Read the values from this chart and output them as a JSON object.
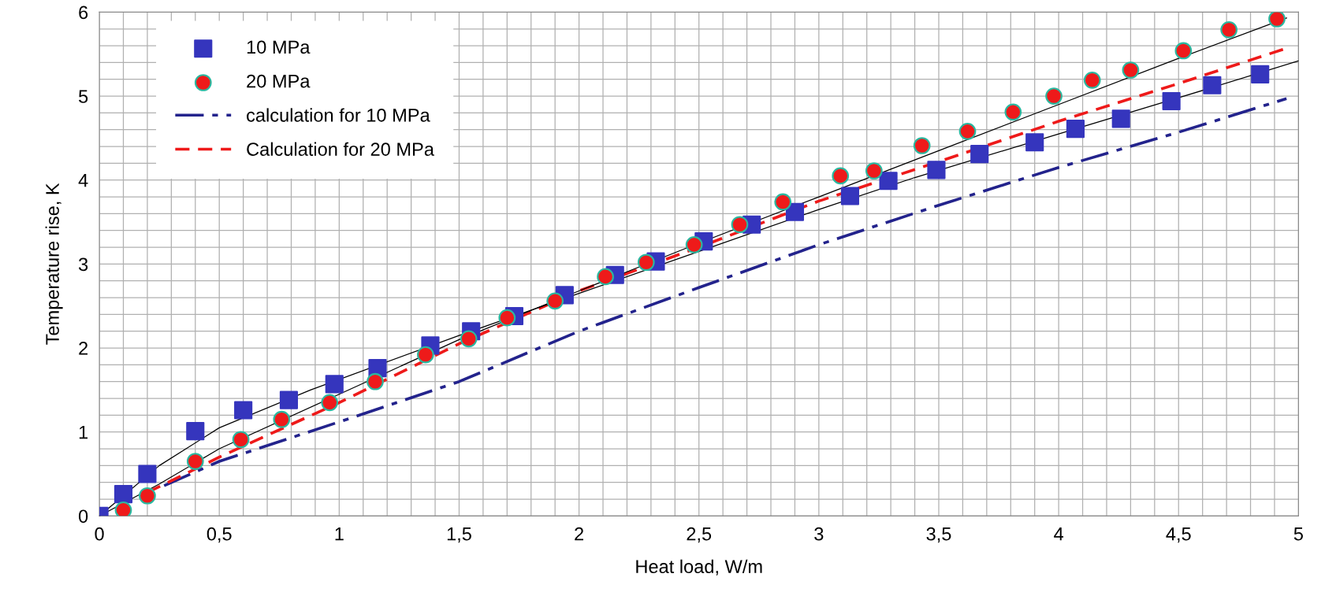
{
  "chart_data": {
    "type": "scatter",
    "xlabel": "Heat load, W/m",
    "ylabel": "Temperature rise, K",
    "xlim": [
      0,
      5
    ],
    "ylim": [
      0,
      6
    ],
    "xticks": [
      0,
      {
        "value": 0.1,
        "label": null
      },
      {
        "value": 0.2,
        "label": null
      },
      {
        "value": 0.3,
        "label": null
      },
      {
        "value": 0.4,
        "label": null
      },
      {
        "value": 0.5,
        "label": "0,5"
      },
      {
        "value": 0.6,
        "label": null
      },
      {
        "value": 0.7,
        "label": null
      },
      {
        "value": 0.8,
        "label": null
      },
      {
        "value": 0.9,
        "label": null
      },
      1,
      {
        "value": 1.1,
        "label": null
      },
      {
        "value": 1.2,
        "label": null
      },
      {
        "value": 1.3,
        "label": null
      },
      {
        "value": 1.4,
        "label": null
      },
      {
        "value": 1.5,
        "label": "1,5"
      },
      {
        "value": 1.6,
        "label": null
      },
      {
        "value": 1.7,
        "label": null
      },
      {
        "value": 1.8,
        "label": null
      },
      {
        "value": 1.9,
        "label": null
      },
      2,
      {
        "value": 2.1,
        "label": null
      },
      {
        "value": 2.2,
        "label": null
      },
      {
        "value": 2.3,
        "label": null
      },
      {
        "value": 2.4,
        "label": null
      },
      {
        "value": 2.5,
        "label": "2,5"
      },
      {
        "value": 2.6,
        "label": null
      },
      {
        "value": 2.7,
        "label": null
      },
      {
        "value": 2.8,
        "label": null
      },
      {
        "value": 2.9,
        "label": null
      },
      3,
      {
        "value": 3.1,
        "label": null
      },
      {
        "value": 3.2,
        "label": null
      },
      {
        "value": 3.3,
        "label": null
      },
      {
        "value": 3.4,
        "label": null
      },
      {
        "value": 3.5,
        "label": "3,5"
      },
      {
        "value": 3.6,
        "label": null
      },
      {
        "value": 3.7,
        "label": null
      },
      {
        "value": 3.8,
        "label": null
      },
      {
        "value": 3.9,
        "label": null
      },
      4,
      {
        "value": 4.1,
        "label": null
      },
      {
        "value": 4.2,
        "label": null
      },
      {
        "value": 4.3,
        "label": null
      },
      {
        "value": 4.4,
        "label": null
      },
      {
        "value": 4.5,
        "label": "4,5"
      },
      {
        "value": 4.6,
        "label": null
      },
      {
        "value": 4.7,
        "label": null
      },
      {
        "value": 4.8,
        "label": null
      },
      {
        "value": 4.9,
        "label": null
      },
      5
    ],
    "yticks": [
      0,
      {
        "value": 0.2,
        "label": null
      },
      {
        "value": 0.4,
        "label": null
      },
      {
        "value": 0.6,
        "label": null
      },
      {
        "value": 0.8,
        "label": null
      },
      1,
      {
        "value": 1.2,
        "label": null
      },
      {
        "value": 1.4,
        "label": null
      },
      {
        "value": 1.6,
        "label": null
      },
      {
        "value": 1.8,
        "label": null
      },
      2,
      {
        "value": 2.2,
        "label": null
      },
      {
        "value": 2.4,
        "label": null
      },
      {
        "value": 2.6,
        "label": null
      },
      {
        "value": 2.8,
        "label": null
      },
      3,
      {
        "value": 3.2,
        "label": null
      },
      {
        "value": 3.4,
        "label": null
      },
      {
        "value": 3.6,
        "label": null
      },
      {
        "value": 3.8,
        "label": null
      },
      4,
      {
        "value": 4.2,
        "label": null
      },
      {
        "value": 4.4,
        "label": null
      },
      {
        "value": 4.6,
        "label": null
      },
      {
        "value": 4.8,
        "label": null
      },
      5,
      {
        "value": 5.2,
        "label": null
      },
      {
        "value": 5.4,
        "label": null
      },
      {
        "value": 5.6,
        "label": null
      },
      {
        "value": 5.8,
        "label": null
      },
      6
    ],
    "grid": true,
    "legend": "top left",
    "series": [
      {
        "name": "10 MPa",
        "marker": "square",
        "color": "#3535bd",
        "x": [
          0,
          0.1,
          0.2,
          0.4,
          0.6,
          0.79,
          0.98,
          1.16,
          1.38,
          1.55,
          1.73,
          1.94,
          2.15,
          2.32,
          2.52,
          2.72,
          2.9,
          3.13,
          3.29,
          3.49,
          3.67,
          3.9,
          4.07,
          4.26,
          4.47,
          4.64,
          4.84
        ],
        "values": [
          0,
          0.26,
          0.5,
          1.01,
          1.26,
          1.38,
          1.57,
          1.76,
          2.03,
          2.2,
          2.38,
          2.63,
          2.87,
          3.03,
          3.27,
          3.47,
          3.62,
          3.81,
          3.99,
          4.12,
          4.31,
          4.45,
          4.61,
          4.73,
          4.94,
          5.13,
          5.26
        ]
      },
      {
        "name": "20 MPa",
        "marker": "circle",
        "color": "#ee1a1a",
        "x": [
          0.1,
          0.2,
          0.4,
          0.59,
          0.76,
          0.96,
          1.15,
          1.36,
          1.54,
          1.7,
          1.9,
          2.11,
          2.28,
          2.48,
          2.67,
          2.85,
          3.09,
          3.23,
          3.43,
          3.62,
          3.81,
          3.98,
          4.14,
          4.3,
          4.52,
          4.71,
          4.91
        ],
        "values": [
          0.07,
          0.24,
          0.65,
          0.91,
          1.15,
          1.35,
          1.6,
          1.92,
          2.11,
          2.36,
          2.56,
          2.85,
          3.02,
          3.23,
          3.47,
          3.74,
          4.05,
          4.11,
          4.41,
          4.58,
          4.81,
          5.0,
          5.19,
          5.31,
          5.54,
          5.79,
          5.92
        ]
      },
      {
        "name": "calculation for 10 MPa",
        "type": "line",
        "line_style": "dashdot",
        "color": "#23238c",
        "x": [
          0.27,
          0.5,
          1,
          1.5,
          2,
          2.5,
          3,
          3.5,
          4,
          4.5,
          4.95
        ],
        "values": [
          0.36,
          0.65,
          1.12,
          1.6,
          2.2,
          2.72,
          3.23,
          3.7,
          4.15,
          4.57,
          4.97
        ]
      },
      {
        "name": "Calculation for 20 MPa",
        "type": "line",
        "line_style": "dashed",
        "color": "#ee1a1a",
        "x": [
          0.2,
          0.5,
          1,
          1.5,
          2,
          2.5,
          3,
          3.5,
          4,
          4.5,
          4.95
        ],
        "values": [
          0.28,
          0.7,
          1.35,
          2.05,
          2.68,
          3.2,
          3.75,
          4.22,
          4.7,
          5.15,
          5.57
        ]
      },
      {
        "type": "line",
        "line_style": "solid",
        "color": "#000000",
        "x": [
          0,
          0.25,
          0.5,
          0.88,
          1.5,
          2,
          2.5,
          3,
          3.4,
          4,
          4.5,
          5
        ],
        "values": [
          0,
          0.6,
          1.05,
          1.5,
          2.15,
          2.65,
          3.15,
          3.65,
          4.03,
          4.55,
          4.98,
          5.42
        ]
      },
      {
        "type": "line",
        "line_style": "solid",
        "color": "#000000",
        "x": [
          0,
          0.25,
          0.5,
          1,
          1.5,
          2,
          2.5,
          3,
          3.5,
          4,
          4.5,
          4.95
        ],
        "values": [
          0,
          0.38,
          0.8,
          1.45,
          2.1,
          2.68,
          3.25,
          3.8,
          4.35,
          4.9,
          5.45,
          5.93
        ]
      }
    ]
  }
}
